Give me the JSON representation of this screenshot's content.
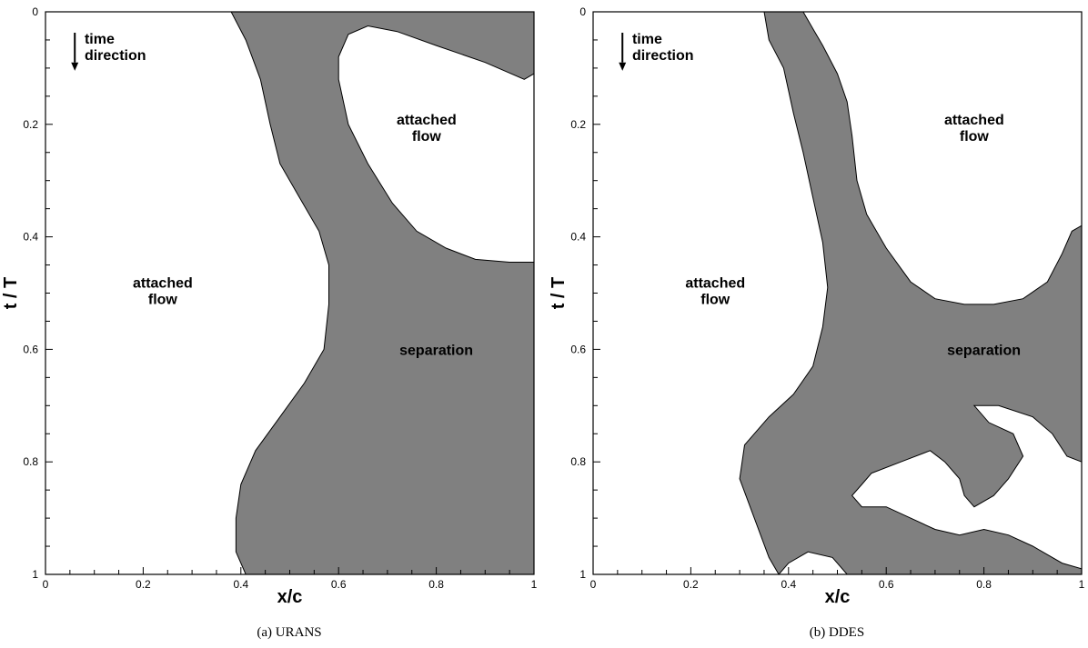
{
  "chart_data": [
    {
      "type": "area",
      "caption": "(a) URANS",
      "xlabel": "x/c",
      "ylabel": "t / T",
      "xlim": [
        0,
        1
      ],
      "ylim": [
        1,
        0
      ],
      "x_ticks": [
        {
          "v": 0,
          "label": "0"
        },
        {
          "v": 0.2,
          "label": "0.2"
        },
        {
          "v": 0.4,
          "label": "0.4"
        },
        {
          "v": 0.6,
          "label": "0.6"
        },
        {
          "v": 0.8,
          "label": "0.8"
        },
        {
          "v": 1,
          "label": "1"
        }
      ],
      "y_ticks": [
        {
          "v": 0,
          "label": "0"
        },
        {
          "v": 0.2,
          "label": "0.2"
        },
        {
          "v": 0.4,
          "label": "0.4"
        },
        {
          "v": 0.6,
          "label": "0.6"
        },
        {
          "v": 0.8,
          "label": "0.8"
        },
        {
          "v": 1,
          "label": "1"
        }
      ],
      "fill_color": "#808080",
      "annotations": [
        {
          "text": [
            "time",
            "direction"
          ],
          "x": 0.09,
          "y": 0.04,
          "arrow": true
        },
        {
          "text": [
            "attached",
            "flow"
          ],
          "x": 0.78,
          "y": 0.2
        },
        {
          "text": [
            "attached",
            "flow"
          ],
          "x": 0.24,
          "y": 0.49
        },
        {
          "text": [
            "separation"
          ],
          "x": 0.8,
          "y": 0.61
        }
      ],
      "regions": [
        {
          "name": "separation-region",
          "points": [
            [
              0.38,
              0
            ],
            [
              1,
              0
            ],
            [
              1,
              0.11
            ],
            [
              0.98,
              0.12
            ],
            [
              0.9,
              0.09
            ],
            [
              0.8,
              0.06
            ],
            [
              0.72,
              0.035
            ],
            [
              0.66,
              0.025
            ],
            [
              0.62,
              0.04
            ],
            [
              0.6,
              0.08
            ],
            [
              0.6,
              0.12
            ],
            [
              0.62,
              0.2
            ],
            [
              0.66,
              0.27
            ],
            [
              0.71,
              0.34
            ],
            [
              0.76,
              0.39
            ],
            [
              0.82,
              0.42
            ],
            [
              0.88,
              0.44
            ],
            [
              0.95,
              0.445
            ],
            [
              1,
              0.445
            ],
            [
              1,
              1
            ],
            [
              0.41,
              1
            ],
            [
              0.39,
              0.96
            ],
            [
              0.39,
              0.9
            ],
            [
              0.4,
              0.84
            ],
            [
              0.43,
              0.78
            ],
            [
              0.48,
              0.72
            ],
            [
              0.53,
              0.66
            ],
            [
              0.57,
              0.6
            ],
            [
              0.58,
              0.52
            ],
            [
              0.58,
              0.45
            ],
            [
              0.56,
              0.39
            ],
            [
              0.52,
              0.33
            ],
            [
              0.48,
              0.27
            ],
            [
              0.46,
              0.2
            ],
            [
              0.44,
              0.12
            ],
            [
              0.41,
              0.05
            ]
          ]
        }
      ]
    },
    {
      "type": "area",
      "caption": "(b) DDES",
      "xlabel": "x/c",
      "ylabel": "t / T",
      "xlim": [
        0,
        1
      ],
      "ylim": [
        1,
        0
      ],
      "x_ticks": [
        {
          "v": 0,
          "label": "0"
        },
        {
          "v": 0.2,
          "label": "0.2"
        },
        {
          "v": 0.4,
          "label": "0.4"
        },
        {
          "v": 0.6,
          "label": "0.6"
        },
        {
          "v": 0.8,
          "label": "0.8"
        },
        {
          "v": 1,
          "label": "1"
        }
      ],
      "y_ticks": [
        {
          "v": 0,
          "label": "0"
        },
        {
          "v": 0.2,
          "label": "0.2"
        },
        {
          "v": 0.4,
          "label": "0.4"
        },
        {
          "v": 0.6,
          "label": "0.6"
        },
        {
          "v": 0.8,
          "label": "0.8"
        },
        {
          "v": 1,
          "label": "1"
        }
      ],
      "fill_color": "#808080",
      "annotations": [
        {
          "text": [
            "time",
            "direction"
          ],
          "x": 0.09,
          "y": 0.04,
          "arrow": true
        },
        {
          "text": [
            "attached",
            "flow"
          ],
          "x": 0.78,
          "y": 0.2
        },
        {
          "text": [
            "attached",
            "flow"
          ],
          "x": 0.25,
          "y": 0.49
        },
        {
          "text": [
            "separation"
          ],
          "x": 0.8,
          "y": 0.61
        }
      ],
      "regions": [
        {
          "name": "separation-region",
          "points": [
            [
              0.35,
              0
            ],
            [
              0.43,
              0
            ],
            [
              0.45,
              0.03
            ],
            [
              0.47,
              0.06
            ],
            [
              0.5,
              0.11
            ],
            [
              0.52,
              0.16
            ],
            [
              0.53,
              0.22
            ],
            [
              0.54,
              0.3
            ],
            [
              0.56,
              0.36
            ],
            [
              0.6,
              0.42
            ],
            [
              0.65,
              0.48
            ],
            [
              0.7,
              0.51
            ],
            [
              0.76,
              0.52
            ],
            [
              0.82,
              0.52
            ],
            [
              0.88,
              0.51
            ],
            [
              0.93,
              0.48
            ],
            [
              0.96,
              0.43
            ],
            [
              0.98,
              0.39
            ],
            [
              1,
              0.38
            ],
            [
              1,
              1
            ],
            [
              0.52,
              1
            ],
            [
              0.49,
              0.97
            ],
            [
              0.44,
              0.96
            ],
            [
              0.4,
              0.98
            ],
            [
              0.38,
              1
            ],
            [
              0.36,
              0.97
            ],
            [
              0.33,
              0.9
            ],
            [
              0.3,
              0.83
            ],
            [
              0.31,
              0.77
            ],
            [
              0.36,
              0.72
            ],
            [
              0.41,
              0.68
            ],
            [
              0.45,
              0.63
            ],
            [
              0.47,
              0.56
            ],
            [
              0.48,
              0.49
            ],
            [
              0.47,
              0.41
            ],
            [
              0.45,
              0.33
            ],
            [
              0.43,
              0.25
            ],
            [
              0.41,
              0.18
            ],
            [
              0.39,
              0.1
            ],
            [
              0.36,
              0.05
            ]
          ]
        },
        {
          "name": "reattached-pocket",
          "holes": true,
          "points": [
            [
              0.57,
              0.82
            ],
            [
              0.63,
              0.8
            ],
            [
              0.69,
              0.78
            ],
            [
              0.72,
              0.8
            ],
            [
              0.75,
              0.83
            ],
            [
              0.76,
              0.86
            ],
            [
              0.78,
              0.88
            ],
            [
              0.82,
              0.86
            ],
            [
              0.85,
              0.83
            ],
            [
              0.88,
              0.79
            ],
            [
              0.86,
              0.75
            ],
            [
              0.81,
              0.73
            ],
            [
              0.78,
              0.7
            ],
            [
              0.83,
              0.7
            ],
            [
              0.9,
              0.72
            ],
            [
              0.94,
              0.75
            ],
            [
              0.97,
              0.79
            ],
            [
              1,
              0.8
            ],
            [
              1,
              0.99
            ],
            [
              0.96,
              0.98
            ],
            [
              0.9,
              0.95
            ],
            [
              0.85,
              0.93
            ],
            [
              0.8,
              0.92
            ],
            [
              0.75,
              0.93
            ],
            [
              0.7,
              0.92
            ],
            [
              0.65,
              0.9
            ],
            [
              0.6,
              0.88
            ],
            [
              0.55,
              0.88
            ],
            [
              0.53,
              0.86
            ],
            [
              0.55,
              0.84
            ]
          ]
        }
      ]
    }
  ]
}
